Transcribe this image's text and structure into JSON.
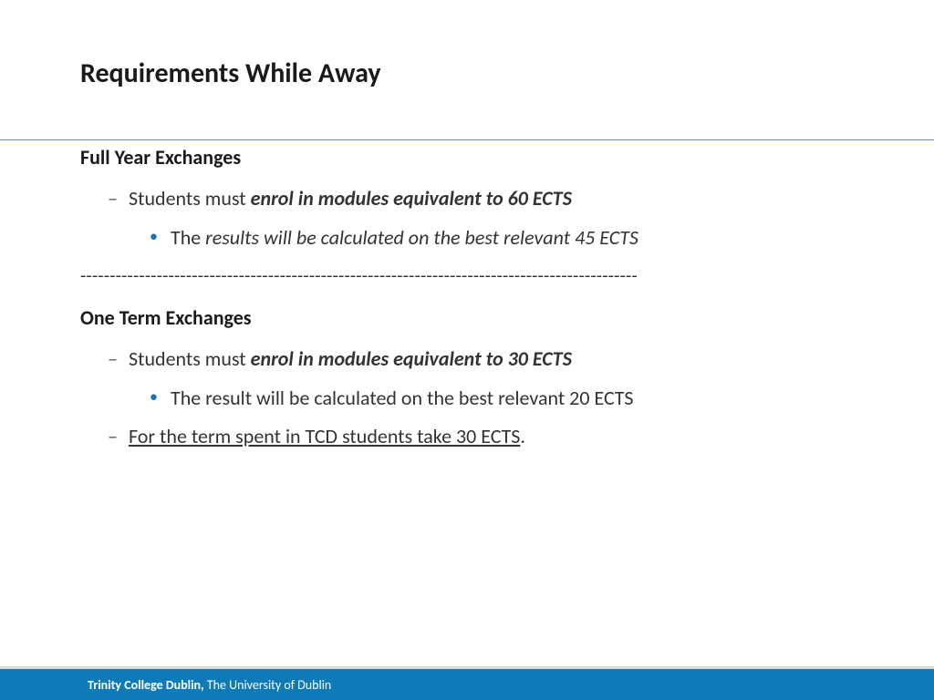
{
  "slide": {
    "title": "Requirements While Away",
    "section1": {
      "heading": "Full Year Exchanges",
      "item1_prefix": "Students must ",
      "item1_emphasis": "enrol in modules equivalent to 60 ECTS",
      "subitem1_prefix": "The ",
      "subitem1_italic": "results will be calculated on the best relevant 45 ECTS"
    },
    "separator": "-----------------------------------------------------------------------------------------------",
    "section2": {
      "heading": "One Term Exchanges",
      "item1_prefix": "Students must ",
      "item1_emphasis": "enrol in modules equivalent to 30 ECTS",
      "subitem1": "The result will be calculated on the best relevant 20 ECTS",
      "item2": "For the term spent in TCD students take 30 ECTS",
      "item2_suffix": "."
    }
  },
  "footer": {
    "bold": "Trinity College Dublin, ",
    "regular": "The University of Dublin"
  },
  "styling": {
    "background_color": "#ffffff",
    "title_color": "#1a1a1a",
    "title_fontsize": 30,
    "body_color": "#333333",
    "body_fontsize": 22,
    "divider_color": "#5b9bd5",
    "dash_bullet_color": "#595959",
    "dot_bullet_color": "#1f6fb5",
    "footer_bg": "#0e7bb8",
    "footer_text_color": "#ffffff",
    "footer_fontsize": 14
  }
}
